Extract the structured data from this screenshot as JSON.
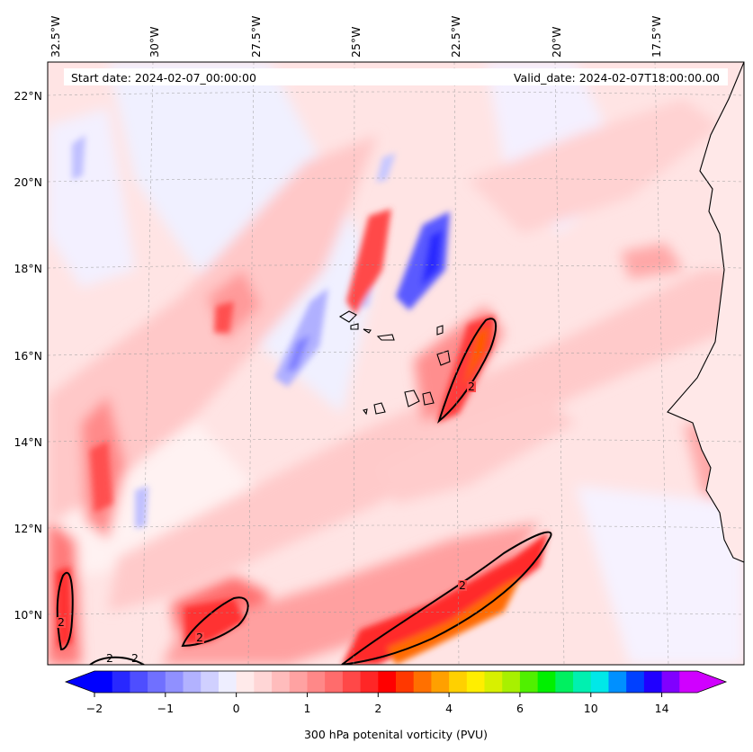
{
  "header": {
    "start_date": "Start date: 2024-02-07_00:00:00",
    "valid_date": "Valid_date: 2024-02-07T18:00:00.00"
  },
  "map": {
    "lon_labels": [
      "32.5°W",
      "30°W",
      "27.5°W",
      "25°W",
      "22.5°W",
      "20°W",
      "17.5°W"
    ],
    "lat_labels": [
      "22°N",
      "20°N",
      "18°N",
      "16°N",
      "14°N",
      "12°N",
      "10°N"
    ],
    "contour_label": "2",
    "grid": true
  },
  "colorbar": {
    "title": "300 hPa potenital vorticity (PVU)",
    "tick_labels": [
      "−2",
      "−1",
      "0",
      "1",
      "2",
      "4",
      "6",
      "10",
      "14"
    ],
    "colors": [
      "#0000ff",
      "#2828ff",
      "#4e4eff",
      "#7070ff",
      "#9090ff",
      "#b2b2ff",
      "#d0d0ff",
      "#eeeeff",
      "#ffeaea",
      "#ffd6d6",
      "#ffbcbc",
      "#ffa2a2",
      "#ff8888",
      "#ff6c6c",
      "#ff4848",
      "#ff2626",
      "#ff0000",
      "#ff3800",
      "#ff7000",
      "#ffa000",
      "#ffd000",
      "#ffee00",
      "#d8f000",
      "#a8f000",
      "#50f000",
      "#00f000",
      "#00f060",
      "#00f0b0",
      "#00e8e8",
      "#0090ff",
      "#0040ff",
      "#2000ff",
      "#8000ff",
      "#d000ff"
    ]
  }
}
